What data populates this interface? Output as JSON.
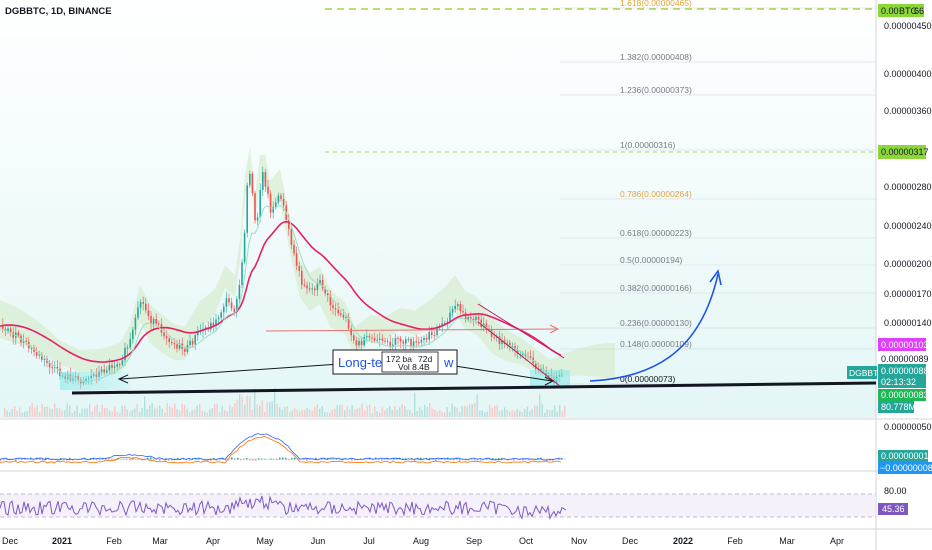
{
  "header": {
    "symbol": "DGBBTC, 1D, BINANCE"
  },
  "price_axis": {
    "ticks": [
      "0.00000450",
      "0.00000400",
      "0.00000360",
      "0.00000317",
      "0.00000280",
      "0.00000240",
      "0.00000200",
      "0.00000170",
      "0.00000140",
      "0.00000103",
      "0.00000089",
      "0.00000088",
      "0.00000083",
      "0.00000050"
    ],
    "top_tag": "0.00",
    "top_tag_suffix": "BTC",
    "top_tag_num": "66",
    "tag_317": "0.00000317",
    "tag_103": "0.00000103",
    "tag_089": "0.00000089",
    "tag_088": "0.00000088",
    "tag_countdown": "02:13:32",
    "tag_083": "0.00000083",
    "tag_vol": "80.778M",
    "symbol_tag": "DGBBTC"
  },
  "fib_levels": [
    {
      "label": "1.618(0.00000465)",
      "color": "#e8a33a"
    },
    {
      "label": "1.382(0.00000408)",
      "color": "#787b86"
    },
    {
      "label": "1.236(0.00000373)",
      "color": "#787b86"
    },
    {
      "label": "1(0.00000316)",
      "color": "#787b86"
    },
    {
      "label": "0.786(0.00000264)",
      "color": "#e8a33a"
    },
    {
      "label": "0.618(0.00000223)",
      "color": "#787b86"
    },
    {
      "label": "0.5(0.00000194)",
      "color": "#787b86"
    },
    {
      "label": "0.382(0.00000166)",
      "color": "#787b86"
    },
    {
      "label": "0.236(0.00000130)",
      "color": "#787b86"
    },
    {
      "label": "0.148(0.00000109)",
      "color": "#787b86"
    },
    {
      "label": "0(0.00000073)",
      "color": "#131722"
    }
  ],
  "annotation": {
    "box_text": "Long-te",
    "box_text_right": "w",
    "bars_text": "172 ba",
    "bars_text2": "72d",
    "vol_text": "Vol 8.4B"
  },
  "macd_axis": {
    "tick_50": "0.00000050",
    "tag_pos": "0.00000001",
    "tag_neg": "−0.00000008"
  },
  "rsi_axis": {
    "tick_80": "80.00",
    "tag_rsi": "45.36"
  },
  "time_axis": {
    "months": [
      "Dec",
      "2021",
      "Feb",
      "Mar",
      "Apr",
      "May",
      "Jun",
      "Jul",
      "Aug",
      "Sep",
      "Oct",
      "Nov",
      "Dec",
      "2022",
      "Feb",
      "Mar",
      "Apr"
    ]
  },
  "colors": {
    "up": "#26a69a",
    "down": "#ef5350",
    "ema": "#e91e63",
    "accent_green": "#7bd82a",
    "pink": "#e040fb",
    "blue_arrow": "#1e53e5",
    "rsi": "#7e57c2",
    "cloud": "#c8e6c9"
  }
}
